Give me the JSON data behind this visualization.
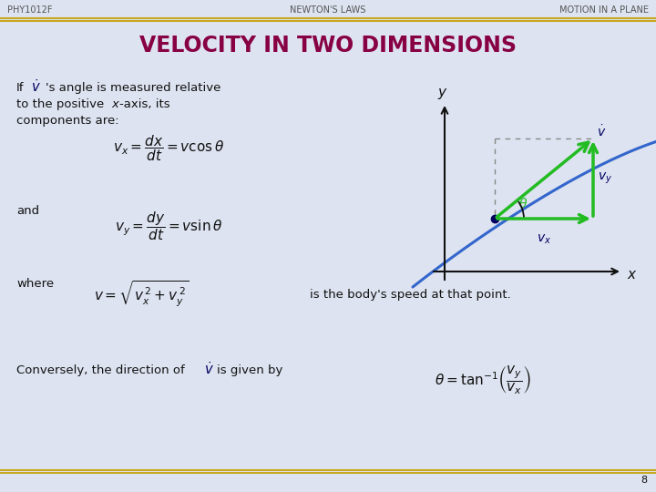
{
  "bg_color": "#dde3f0",
  "header_line_color": "#c8a820",
  "header_text_color": "#555555",
  "header_left": "PHY1012F",
  "header_center": "NEWTON'S LAWS",
  "header_right": "MOTION IN A PLANE",
  "title": "VELOCITY IN TWO DIMENSIONS",
  "title_color": "#880044",
  "footer_num": "8",
  "text_color": "#111111",
  "arrow_color": "#22bb22",
  "curve_color": "#3366cc",
  "axis_color": "#111111",
  "dashed_color": "#888888",
  "dot_color": "#000060",
  "vdot_color": "#000060"
}
